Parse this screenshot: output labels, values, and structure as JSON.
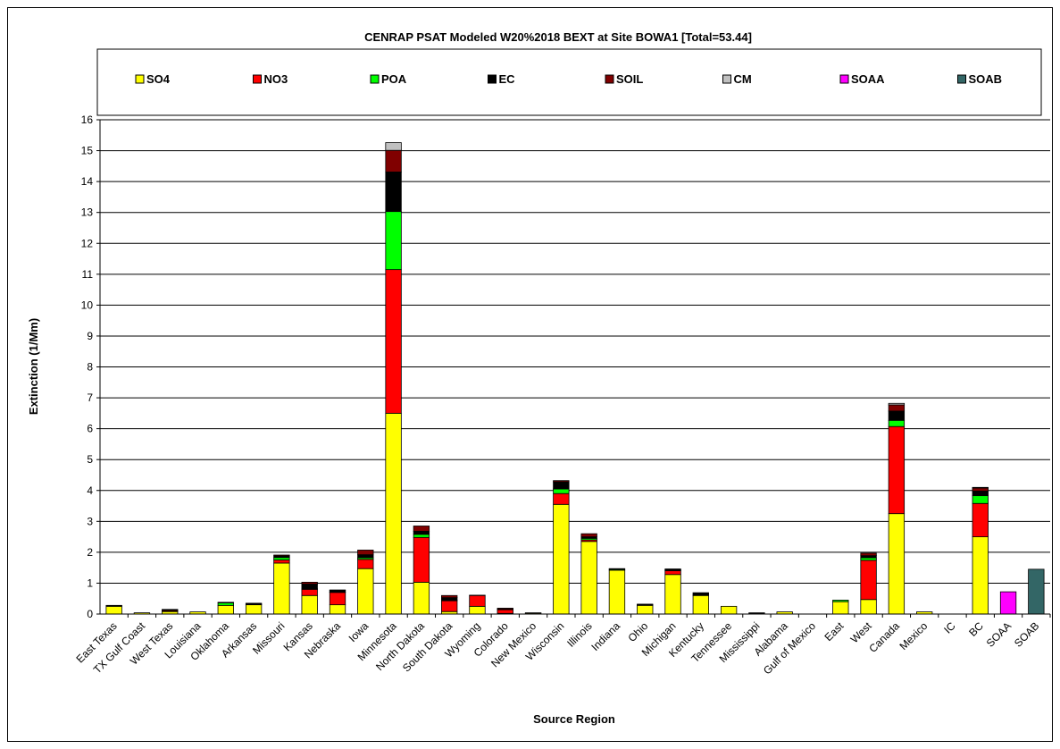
{
  "chart_data": {
    "type": "bar",
    "stacked": true,
    "title": "CENRAP PSAT Modeled W20%2018 BEXT at Site BOWA1 [Total=53.44]",
    "xlabel": "Source Region",
    "ylabel": "Extinction (1/Mm)",
    "ylim": [
      0,
      16
    ],
    "ytick_step": 1,
    "grid": true,
    "legend_position": "top",
    "categories": [
      "East Texas",
      "TX Gulf Coast",
      "West Texas",
      "Louisiana",
      "Oklahoma",
      "Arkansas",
      "Missouri",
      "Kansas",
      "Nebraska",
      "Iowa",
      "Minnesota",
      "North Dakota",
      "South Dakota",
      "Wyoming",
      "Colorado",
      "New Mexico",
      "Wisconsin",
      "Illinois",
      "Indiana",
      "Ohio",
      "Michigan",
      "Kentucky",
      "Tennessee",
      "Mississippi",
      "Alabama",
      "Gulf of Mexico",
      "East",
      "West",
      "Canada",
      "Mexico",
      "IC",
      "BC",
      "SOAA",
      "SOAB"
    ],
    "series": [
      {
        "name": "SO4",
        "color": "#ffff00",
        "values": [
          0.25,
          0.04,
          0.08,
          0.07,
          0.28,
          0.3,
          1.65,
          0.6,
          0.3,
          1.47,
          6.5,
          1.03,
          0.08,
          0.25,
          0.02,
          0.03,
          3.55,
          2.35,
          1.42,
          0.28,
          1.28,
          0.6,
          0.25,
          0.01,
          0.07,
          0,
          0.4,
          0.47,
          3.25,
          0.07,
          0,
          2.5,
          0,
          0
        ]
      },
      {
        "name": "NO3",
        "color": "#ff0000",
        "values": [
          0,
          0,
          0.03,
          0,
          0,
          0,
          0.1,
          0.2,
          0.4,
          0.3,
          4.65,
          1.45,
          0.35,
          0.35,
          0.12,
          0,
          0.35,
          0.05,
          0,
          0,
          0.12,
          0,
          0,
          0,
          0,
          0,
          0,
          1.27,
          2.82,
          0,
          0,
          1.08,
          0,
          0
        ]
      },
      {
        "name": "POA",
        "color": "#00ff00",
        "values": [
          0.02,
          0,
          0,
          0,
          0.08,
          0.02,
          0.08,
          0.02,
          0.01,
          0.05,
          1.88,
          0.1,
          0.02,
          0.01,
          0,
          0.01,
          0.15,
          0.05,
          0.03,
          0.02,
          0.02,
          0.02,
          0,
          0,
          0,
          0,
          0.05,
          0.08,
          0.2,
          0,
          0,
          0.25,
          0,
          0
        ]
      },
      {
        "name": "EC",
        "color": "#000000",
        "values": [
          0.01,
          0,
          0.02,
          0,
          0.02,
          0.03,
          0.05,
          0.15,
          0.05,
          0.1,
          1.28,
          0.1,
          0.08,
          0,
          0.02,
          0,
          0.23,
          0.05,
          0.02,
          0.02,
          0.02,
          0.05,
          0,
          0.03,
          0,
          0,
          0,
          0.07,
          0.3,
          0,
          0,
          0.15,
          0,
          0
        ]
      },
      {
        "name": "SOIL",
        "color": "#800000",
        "values": [
          0,
          0,
          0.02,
          0,
          0,
          0,
          0.03,
          0.06,
          0.02,
          0.15,
          0.7,
          0.17,
          0.07,
          0,
          0.03,
          0,
          0.04,
          0.1,
          0,
          0,
          0.02,
          0.02,
          0,
          0,
          0,
          0,
          0,
          0.08,
          0.2,
          0,
          0,
          0.1,
          0,
          0
        ]
      },
      {
        "name": "CM",
        "color": "#c0c0c0",
        "values": [
          0,
          0,
          0,
          0,
          0,
          0,
          0,
          0,
          0,
          0,
          0.25,
          0,
          0,
          0,
          0,
          0,
          0,
          0,
          0,
          0,
          0,
          0,
          0,
          0,
          0,
          0,
          0,
          0,
          0.05,
          0,
          0,
          0.02,
          0,
          0
        ]
      },
      {
        "name": "SOAA",
        "color": "#ff00ff",
        "values": [
          0,
          0,
          0,
          0,
          0,
          0,
          0,
          0,
          0,
          0,
          0,
          0,
          0,
          0,
          0,
          0,
          0,
          0,
          0,
          0,
          0,
          0,
          0,
          0,
          0,
          0,
          0,
          0,
          0,
          0,
          0,
          0,
          0.72,
          0
        ]
      },
      {
        "name": "SOAB",
        "color": "#336666",
        "values": [
          0,
          0,
          0,
          0,
          0,
          0,
          0,
          0,
          0,
          0,
          0,
          0,
          0,
          0,
          0,
          0,
          0,
          0,
          0,
          0,
          0,
          0,
          0,
          0,
          0,
          0,
          0,
          0,
          0,
          0,
          0,
          0,
          0,
          1.45
        ]
      }
    ]
  }
}
